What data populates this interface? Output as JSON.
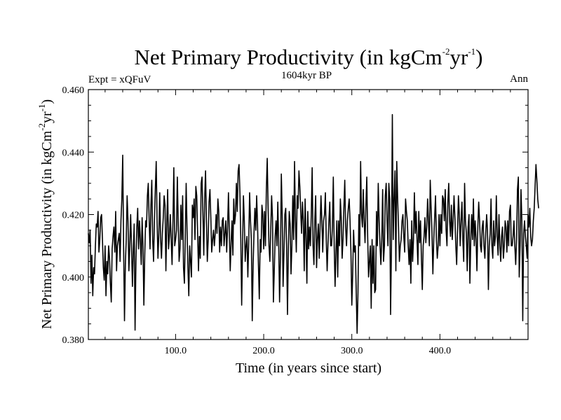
{
  "chart_data": {
    "type": "line",
    "title": {
      "main": "Net Primary Productivity (in kgCm",
      "exp1": "-2",
      "mid": "yr",
      "exp2": "-1",
      "end": ")"
    },
    "subtitle_left": "Expt = xQFuV",
    "subtitle_center": "1604kyr BP",
    "subtitle_right": "Ann",
    "xlabel": "Time (in years since start)",
    "ylabel": {
      "main": "Net Primary Productivity (in kgCm",
      "exp1": "-2",
      "mid": "yr",
      "exp2": "-1",
      "end": ")"
    },
    "xlim": [
      1,
      500
    ],
    "ylim": [
      0.38,
      0.46
    ],
    "x_ticks": [
      100,
      200,
      300,
      400
    ],
    "x_tick_labels": [
      "100.0",
      "200.0",
      "300.0",
      "400.0"
    ],
    "y_ticks": [
      0.38,
      0.4,
      0.42,
      0.44,
      0.46
    ],
    "y_tick_labels": [
      "0.380",
      "0.400",
      "0.420",
      "0.440",
      "0.460"
    ],
    "series": [
      {
        "name": "Net Primary Productivity",
        "color": "#000000",
        "x_start": 1,
        "x_step": 1,
        "values": [
          0.414,
          0.411,
          0.415,
          0.398,
          0.407,
          0.394,
          0.403,
          0.401,
          0.41,
          0.417,
          0.416,
          0.421,
          0.408,
          0.412,
          0.419,
          0.42,
          0.412,
          0.403,
          0.399,
          0.41,
          0.394,
          0.405,
          0.401,
          0.41,
          0.406,
          0.398,
          0.392,
          0.409,
          0.413,
          0.416,
          0.408,
          0.421,
          0.402,
          0.41,
          0.412,
          0.414,
          0.405,
          0.418,
          0.425,
          0.439,
          0.41,
          0.386,
          0.404,
          0.412,
          0.426,
          0.418,
          0.402,
          0.41,
          0.42,
          0.41,
          0.397,
          0.408,
          0.417,
          0.383,
          0.405,
          0.416,
          0.422,
          0.409,
          0.418,
          0.412,
          0.404,
          0.419,
          0.41,
          0.391,
          0.407,
          0.418,
          0.416,
          0.426,
          0.43,
          0.418,
          0.409,
          0.423,
          0.431,
          0.412,
          0.405,
          0.418,
          0.428,
          0.437,
          0.418,
          0.406,
          0.414,
          0.427,
          0.412,
          0.406,
          0.414,
          0.419,
          0.426,
          0.423,
          0.402,
          0.417,
          0.428,
          0.409,
          0.413,
          0.42,
          0.412,
          0.404,
          0.418,
          0.435,
          0.41,
          0.412,
          0.415,
          0.432,
          0.417,
          0.405,
          0.409,
          0.423,
          0.412,
          0.426,
          0.403,
          0.398,
          0.413,
          0.43,
          0.415,
          0.403,
          0.394,
          0.41,
          0.405,
          0.4,
          0.423,
          0.419,
          0.425,
          0.412,
          0.429,
          0.426,
          0.414,
          0.402,
          0.413,
          0.406,
          0.43,
          0.432,
          0.42,
          0.407,
          0.425,
          0.434,
          0.418,
          0.405,
          0.412,
          0.424,
          0.428,
          0.419,
          0.408,
          0.412,
          0.415,
          0.41,
          0.414,
          0.42,
          0.414,
          0.425,
          0.421,
          0.408,
          0.416,
          0.41,
          0.418,
          0.419,
          0.41,
          0.414,
          0.418,
          0.408,
          0.416,
          0.427,
          0.414,
          0.402,
          0.411,
          0.418,
          0.407,
          0.425,
          0.417,
          0.42,
          0.43,
          0.421,
          0.434,
          0.436,
          0.427,
          0.412,
          0.391,
          0.41,
          0.426,
          0.418,
          0.405,
          0.41,
          0.413,
          0.4,
          0.411,
          0.427,
          0.418,
          0.412,
          0.386,
          0.404,
          0.414,
          0.422,
          0.415,
          0.426,
          0.417,
          0.404,
          0.393,
          0.412,
          0.408,
          0.423,
          0.42,
          0.409,
          0.421,
          0.41,
          0.428,
          0.438,
          0.422,
          0.41,
          0.405,
          0.415,
          0.426,
          0.419,
          0.392,
          0.402,
          0.413,
          0.418,
          0.41,
          0.424,
          0.411,
          0.392,
          0.406,
          0.433,
          0.42,
          0.397,
          0.408,
          0.42,
          0.422,
          0.409,
          0.388,
          0.41,
          0.421,
          0.417,
          0.401,
          0.41,
          0.426,
          0.412,
          0.437,
          0.418,
          0.408,
          0.426,
          0.422,
          0.434,
          0.429,
          0.421,
          0.414,
          0.424,
          0.418,
          0.402,
          0.425,
          0.413,
          0.398,
          0.421,
          0.409,
          0.416,
          0.41,
          0.42,
          0.435,
          0.41,
          0.404,
          0.418,
          0.426,
          0.403,
          0.412,
          0.417,
          0.406,
          0.416,
          0.426,
          0.418,
          0.408,
          0.418,
          0.42,
          0.427,
          0.412,
          0.402,
          0.411,
          0.418,
          0.424,
          0.41,
          0.41,
          0.416,
          0.432,
          0.41,
          0.397,
          0.408,
          0.418,
          0.4,
          0.418,
          0.41,
          0.425,
          0.419,
          0.406,
          0.412,
          0.422,
          0.431,
          0.416,
          0.41,
          0.418,
          0.422,
          0.425,
          0.418,
          0.408,
          0.391,
          0.401,
          0.415,
          0.408,
          0.41,
          0.395,
          0.382,
          0.395,
          0.42,
          0.41,
          0.437,
          0.42,
          0.416,
          0.428,
          0.418,
          0.411,
          0.423,
          0.432,
          0.413,
          0.4,
          0.405,
          0.41,
          0.39,
          0.412,
          0.398,
          0.41,
          0.395,
          0.396,
          0.421,
          0.41,
          0.43,
          0.418,
          0.41,
          0.404,
          0.412,
          0.428,
          0.405,
          0.41,
          0.426,
          0.43,
          0.418,
          0.41,
          0.43,
          0.425,
          0.388,
          0.41,
          0.452,
          0.412,
          0.425,
          0.434,
          0.402,
          0.437,
          0.425,
          0.416,
          0.405,
          0.41,
          0.412,
          0.418,
          0.42,
          0.413,
          0.408,
          0.425,
          0.421,
          0.418,
          0.41,
          0.404,
          0.412,
          0.398,
          0.418,
          0.405,
          0.412,
          0.427,
          0.414,
          0.421,
          0.412,
          0.404,
          0.421,
          0.411,
          0.418,
          0.406,
          0.396,
          0.41,
          0.413,
          0.419,
          0.411,
          0.416,
          0.425,
          0.418,
          0.41,
          0.431,
          0.422,
          0.414,
          0.401,
          0.412,
          0.419,
          0.426,
          0.412,
          0.406,
          0.41,
          0.42,
          0.41,
          0.42,
          0.414,
          0.426,
          0.425,
          0.418,
          0.428,
          0.415,
          0.41,
          0.424,
          0.43,
          0.418,
          0.413,
          0.423,
          0.412,
          0.418,
          0.426,
          0.419,
          0.41,
          0.404,
          0.415,
          0.426,
          0.42,
          0.41,
          0.418,
          0.424,
          0.412,
          0.405,
          0.43,
          0.418,
          0.414,
          0.402,
          0.416,
          0.42,
          0.398,
          0.412,
          0.42,
          0.412,
          0.425,
          0.41,
          0.418,
          0.412,
          0.402,
          0.416,
          0.424,
          0.418,
          0.41,
          0.408,
          0.416,
          0.418,
          0.41,
          0.406,
          0.414,
          0.42,
          0.415,
          0.396,
          0.41,
          0.414,
          0.425,
          0.41,
          0.406,
          0.418,
          0.41,
          0.413,
          0.426,
          0.413,
          0.407,
          0.42,
          0.41,
          0.405,
          0.413,
          0.416,
          0.406,
          0.41,
          0.418,
          0.416,
          0.408,
          0.418,
          0.41,
          0.421,
          0.423,
          0.41,
          0.41,
          0.413,
          0.418,
          0.41,
          0.404,
          0.412,
          0.428,
          0.432,
          0.4,
          0.41,
          0.428,
          0.418,
          0.386,
          0.414,
          0.418,
          0.413,
          0.41,
          0.406,
          0.42,
          0.416,
          0.422,
          0.413,
          0.41,
          0.412,
          0.418,
          0.422,
          0.429,
          0.436,
          0.431,
          0.425,
          0.422
        ]
      }
    ]
  }
}
